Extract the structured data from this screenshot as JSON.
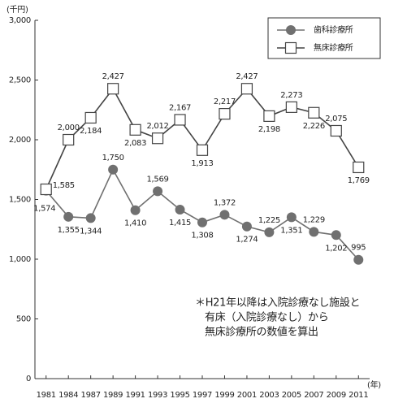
{
  "chart_data": {
    "type": "line",
    "y_unit": "(千円)",
    "x_unit": "(年)",
    "categories": [
      "1981",
      "1984",
      "1987",
      "1989",
      "1991",
      "1993",
      "1995",
      "1997",
      "1999",
      "2001",
      "2003",
      "2005",
      "2007",
      "2009",
      "2011"
    ],
    "series": [
      {
        "name": "歯科診療所",
        "color": "#707070",
        "marker": "circle",
        "values": [
          1574,
          1355,
          1344,
          1750,
          1410,
          1569,
          1415,
          1308,
          1372,
          1274,
          1225,
          1351,
          1229,
          1202,
          995
        ],
        "value_labels": [
          "1,574",
          "1,355",
          "1,344",
          "1,750",
          "1,410",
          "1,569",
          "1,415",
          "1,308",
          "1,372",
          "1,274",
          "1,225",
          "1,351",
          "1,229",
          "1,202",
          "995"
        ]
      },
      {
        "name": "無床診療所",
        "color": "#444444",
        "marker": "square",
        "values": [
          1585,
          2000,
          2184,
          2427,
          2083,
          2012,
          2167,
          1913,
          2217,
          2427,
          2198,
          2273,
          2226,
          2075,
          1769
        ],
        "value_labels": [
          "1,585",
          "2,000",
          "2,184",
          "2,427",
          "2,083",
          "2,012",
          "2,167",
          "1,913",
          "2,217",
          "2,427",
          "2,198",
          "2,273",
          "2,226",
          "2,075",
          "1,769"
        ]
      }
    ],
    "ylim": [
      0,
      3000
    ],
    "yticks": [
      0,
      500,
      {
        "value": 1000,
        "label": "1,000"
      },
      {
        "value": 1500,
        "label": "1,500"
      },
      {
        "value": 2000,
        "label": "2,000"
      },
      {
        "value": 2500,
        "label": "2,500"
      },
      {
        "value": 3000,
        "label": "3,000"
      }
    ],
    "legend": "top-right",
    "annotation": [
      "＊H21年以降は入院診療なし施設と",
      "有床（入院診療なし）から",
      "無床診療所の数値を算出"
    ]
  }
}
